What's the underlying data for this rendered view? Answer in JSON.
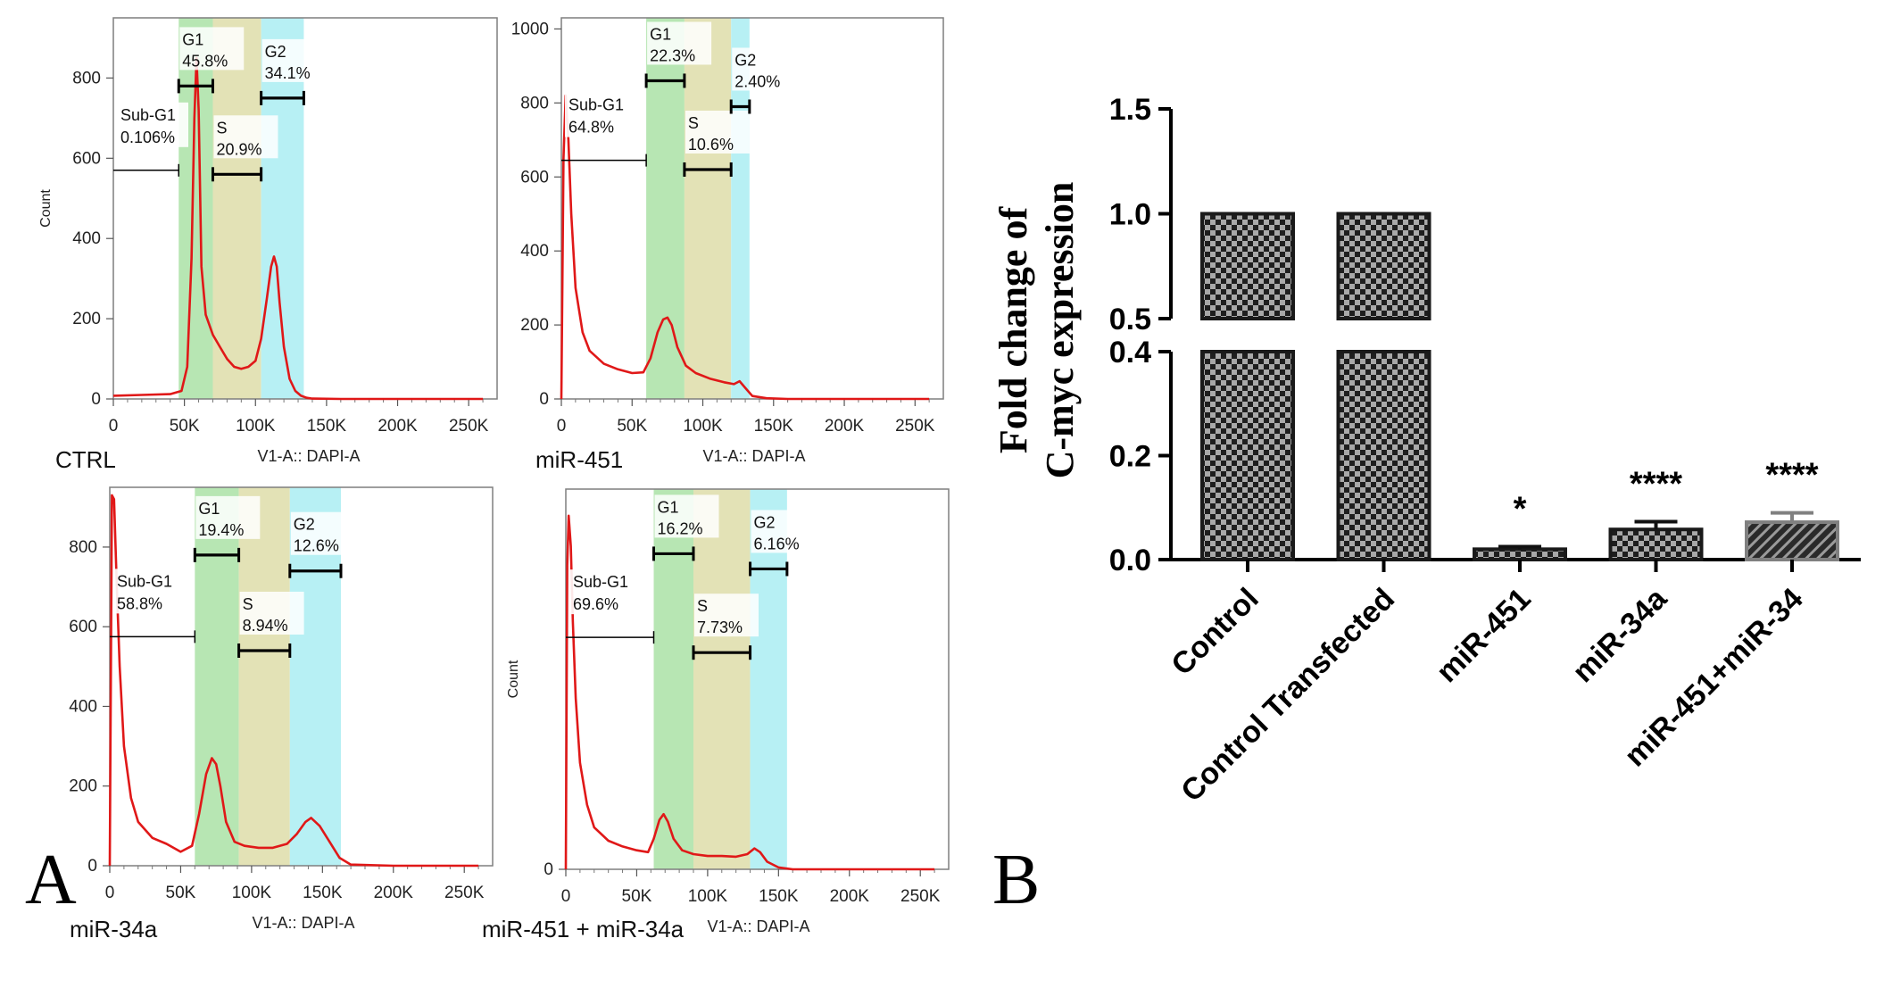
{
  "panel_a": {
    "letter": "A",
    "histograms": [
      {
        "sample": "CTRL",
        "xlabel": "V1-A:: DAPI-A",
        "ylabel": "Count",
        "x_ticks": [
          "0",
          "50K",
          "100K",
          "150K",
          "200K",
          "250K"
        ],
        "y_ticks": [
          "0",
          "200",
          "400",
          "600",
          "800"
        ],
        "xlim": [
          0,
          270000
        ],
        "ylim": [
          0,
          950
        ],
        "bands": [
          {
            "x0": 46000,
            "x1": 70000,
            "color": "#b7e6b3"
          },
          {
            "x0": 70000,
            "x1": 104000,
            "color": "#e3e2b6"
          },
          {
            "x0": 104000,
            "x1": 134000,
            "color": "#b7f0f4"
          }
        ],
        "gates": [
          {
            "name": "Sub-G1",
            "value": "0.106%",
            "x0": 0,
            "x1": 46000,
            "y": 570,
            "bar": false
          },
          {
            "name": "G1",
            "value": "45.8%",
            "x0": 46000,
            "x1": 70000,
            "y": 780,
            "bar": true
          },
          {
            "name": "S",
            "value": "20.9%",
            "x0": 70000,
            "x1": 104000,
            "y": 560,
            "bar": true
          },
          {
            "name": "G2",
            "value": "34.1%",
            "x0": 104000,
            "x1": 134000,
            "y": 750,
            "bar": true
          }
        ],
        "curve": {
          "x": [
            0,
            20000,
            40000,
            48000,
            52000,
            55000,
            57000,
            58500,
            60000,
            62000,
            65000,
            70000,
            75000,
            80000,
            85000,
            90000,
            95000,
            100000,
            104000,
            108000,
            111000,
            113000,
            115000,
            117000,
            120000,
            124000,
            128000,
            132000,
            136000,
            140000,
            160000,
            200000,
            260000
          ],
          "y": [
            8,
            10,
            12,
            20,
            80,
            350,
            700,
            850,
            720,
            330,
            210,
            160,
            130,
            100,
            80,
            75,
            80,
            95,
            150,
            250,
            330,
            355,
            330,
            240,
            130,
            50,
            20,
            8,
            3,
            1,
            0,
            0,
            0
          ]
        }
      },
      {
        "sample": "miR-451",
        "xlabel": "V1-A:: DAPI-A",
        "ylabel": "",
        "x_ticks": [
          "0",
          "50K",
          "100K",
          "150K",
          "200K",
          "250K"
        ],
        "y_ticks": [
          "0",
          "200",
          "400",
          "600",
          "800",
          "1000"
        ],
        "xlim": [
          0,
          270000
        ],
        "ylim": [
          0,
          1030
        ],
        "bands": [
          {
            "x0": 60000,
            "x1": 87000,
            "color": "#b7e6b3"
          },
          {
            "x0": 87000,
            "x1": 120000,
            "color": "#e3e2b6"
          },
          {
            "x0": 120000,
            "x1": 133000,
            "color": "#b7f0f4"
          }
        ],
        "gates": [
          {
            "name": "Sub-G1",
            "value": "64.8%",
            "x0": 0,
            "x1": 60000,
            "y": 645,
            "bar": false
          },
          {
            "name": "G1",
            "value": "22.3%",
            "x0": 60000,
            "x1": 87000,
            "y": 860,
            "bar": true
          },
          {
            "name": "S",
            "value": "10.6%",
            "x0": 87000,
            "x1": 120000,
            "y": 620,
            "bar": true
          },
          {
            "name": "G2",
            "value": "2.40%",
            "x0": 120000,
            "x1": 133000,
            "y": 790,
            "bar": true
          }
        ],
        "curve": {
          "x": [
            0,
            1500,
            3000,
            5000,
            7000,
            10000,
            15000,
            20000,
            30000,
            40000,
            50000,
            58000,
            63000,
            68000,
            72000,
            75000,
            78000,
            82000,
            88000,
            95000,
            105000,
            115000,
            122000,
            126000,
            130000,
            135000,
            145000,
            160000,
            200000,
            260000
          ],
          "y": [
            0,
            650,
            820,
            700,
            500,
            300,
            180,
            130,
            95,
            80,
            70,
            72,
            110,
            180,
            215,
            220,
            200,
            140,
            90,
            70,
            55,
            45,
            40,
            48,
            30,
            8,
            2,
            0,
            0,
            0
          ]
        }
      },
      {
        "sample": "miR-34a",
        "xlabel": "V1-A:: DAPI-A",
        "ylabel": "",
        "x_ticks": [
          "0",
          "50K",
          "100K",
          "150K",
          "200K",
          "250K"
        ],
        "y_ticks": [
          "0",
          "200",
          "400",
          "600",
          "800"
        ],
        "xlim": [
          0,
          270000
        ],
        "ylim": [
          0,
          950
        ],
        "bands": [
          {
            "x0": 60000,
            "x1": 91000,
            "color": "#b7e6b3"
          },
          {
            "x0": 91000,
            "x1": 127000,
            "color": "#e3e2b6"
          },
          {
            "x0": 127000,
            "x1": 163000,
            "color": "#b7f0f4"
          }
        ],
        "gates": [
          {
            "name": "Sub-G1",
            "value": "58.8%",
            "x0": 0,
            "x1": 60000,
            "y": 575,
            "bar": false
          },
          {
            "name": "G1",
            "value": "19.4%",
            "x0": 60000,
            "x1": 91000,
            "y": 780,
            "bar": true
          },
          {
            "name": "S",
            "value": "8.94%",
            "x0": 91000,
            "x1": 127000,
            "y": 540,
            "bar": true
          },
          {
            "name": "G2",
            "value": "12.6%",
            "x0": 127000,
            "x1": 163000,
            "y": 740,
            "bar": true
          }
        ],
        "curve": {
          "x": [
            0,
            1500,
            3000,
            5000,
            7000,
            10000,
            15000,
            20000,
            30000,
            40000,
            50000,
            58000,
            63000,
            68000,
            72000,
            75000,
            78000,
            82000,
            88000,
            95000,
            105000,
            115000,
            125000,
            132000,
            138000,
            142000,
            148000,
            155000,
            162000,
            170000,
            200000,
            260000
          ],
          "y": [
            0,
            930,
            920,
            700,
            500,
            300,
            170,
            110,
            70,
            55,
            35,
            50,
            130,
            230,
            270,
            255,
            200,
            110,
            60,
            50,
            45,
            45,
            55,
            80,
            110,
            120,
            100,
            60,
            20,
            3,
            0,
            0
          ]
        }
      },
      {
        "sample": "miR-451 + miR-34a",
        "xlabel": "V1-A:: DAPI-A",
        "ylabel": "Count",
        "x_ticks": [
          "0",
          "50K",
          "100K",
          "150K",
          "200K",
          "250K"
        ],
        "y_ticks": [
          "0"
        ],
        "xlim": [
          0,
          270000
        ],
        "ylim": [
          0,
          1000
        ],
        "bands": [
          {
            "x0": 62000,
            "x1": 90000,
            "color": "#b7e6b3"
          },
          {
            "x0": 90000,
            "x1": 130000,
            "color": "#e3e2b6"
          },
          {
            "x0": 130000,
            "x1": 156000,
            "color": "#b7f0f4"
          }
        ],
        "gates": [
          {
            "name": "Sub-G1",
            "value": "69.6%",
            "x0": 0,
            "x1": 62000,
            "y": 610,
            "bar": false
          },
          {
            "name": "G1",
            "value": "16.2%",
            "x0": 62000,
            "x1": 90000,
            "y": 830,
            "bar": true
          },
          {
            "name": "S",
            "value": "7.73%",
            "x0": 90000,
            "x1": 130000,
            "y": 570,
            "bar": true
          },
          {
            "name": "G2",
            "value": "6.16%",
            "x0": 130000,
            "x1": 156000,
            "y": 790,
            "bar": true
          }
        ],
        "curve": {
          "x": [
            0,
            1000,
            2000,
            3500,
            5000,
            7000,
            10000,
            15000,
            20000,
            30000,
            40000,
            50000,
            58000,
            62000,
            66000,
            69000,
            72000,
            76000,
            82000,
            90000,
            100000,
            110000,
            120000,
            128000,
            133000,
            137000,
            142000,
            150000,
            160000,
            200000,
            260000
          ],
          "y": [
            0,
            800,
            930,
            850,
            650,
            450,
            280,
            170,
            110,
            75,
            60,
            50,
            45,
            80,
            130,
            145,
            125,
            80,
            50,
            40,
            35,
            35,
            33,
            40,
            55,
            45,
            20,
            5,
            0,
            0,
            0
          ]
        }
      }
    ]
  },
  "panel_b": {
    "letter": "B",
    "chart_data": {
      "type": "bar",
      "categories": [
        "Control",
        "Control Transfected",
        "miR-451",
        "miR-34a",
        "miR-451+miR-34"
      ],
      "values": [
        1.0,
        1.0,
        0.02,
        0.058,
        0.072
      ],
      "errors": [
        0,
        0,
        0.005,
        0.015,
        0.018
      ],
      "significance": [
        "",
        "",
        "*",
        "****",
        "****"
      ],
      "ylabel": "Fold change of C-myc expression",
      "ylabel_lines": [
        "Fold change of",
        "C-myc expression"
      ],
      "y_ticks_lower": [
        "0.0",
        "0.2",
        "0.4"
      ],
      "y_ticks_upper": [
        "0.5",
        "1.0",
        "1.5"
      ],
      "ylim": [
        0,
        1.5
      ],
      "axis_break": [
        0.4,
        0.5
      ],
      "bar_patterns": [
        "checker",
        "checker",
        "checker",
        "checker",
        "hatch"
      ],
      "colors": {
        "bar_dark": "#1a1a1a",
        "bar_light": "#9a9a9a",
        "hatch_border": "#808080"
      }
    }
  }
}
